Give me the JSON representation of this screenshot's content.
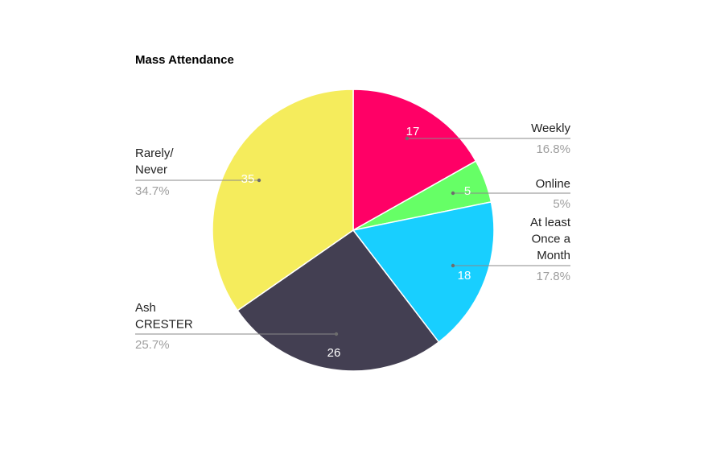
{
  "chart_data": {
    "type": "pie",
    "title": "Mass Attendance",
    "slices": [
      {
        "label": [
          "Weekly"
        ],
        "value": 17,
        "percent": "16.8%",
        "color": "#ff0066"
      },
      {
        "label": [
          "Online"
        ],
        "value": 5,
        "percent": "5%",
        "color": "#66ff66"
      },
      {
        "label": [
          "At least",
          "Once a",
          "Month"
        ],
        "value": 18,
        "percent": "17.8%",
        "color": "#18cfff"
      },
      {
        "label": [
          "Ash",
          "CRESTER"
        ],
        "value": 26,
        "percent": "25.7%",
        "color": "#433f52"
      },
      {
        "label": [
          "Rarely/",
          "Never"
        ],
        "value": 35,
        "percent": "34.7%",
        "color": "#f5ec5c"
      }
    ]
  }
}
